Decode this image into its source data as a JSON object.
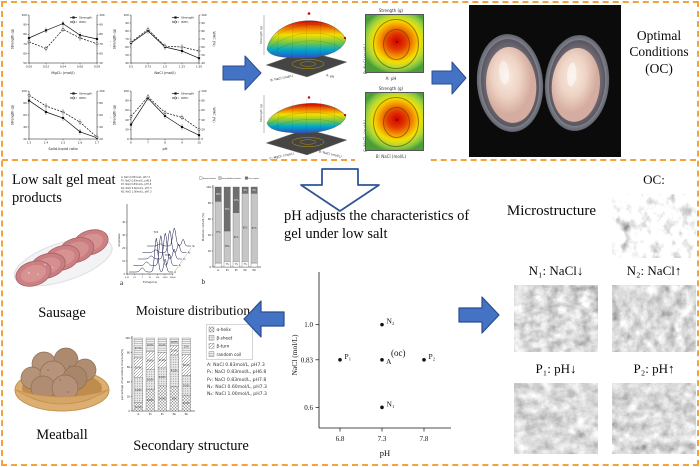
{
  "colors": {
    "border": "#F2A33C",
    "arrow_fill": "#4472C4",
    "arrow_edge": "#2A4D8F",
    "hollow_arrow_edge": "#2F5597"
  },
  "top": {
    "oc_label": "Optimal Conditions (OC)"
  },
  "left": {
    "title": "Low salt gel meat products",
    "sausage_label": "Sausage",
    "meatball_label": "Meatball"
  },
  "center": {
    "moisture_title": "Moisture distribution",
    "secondary_title": "Secondary structure",
    "arrow_text": "pH adjusts the characteristics of gel under low salt"
  },
  "right": {
    "title": "Microstructure",
    "oc_label": "OC:",
    "n1_label": "N₁: NaCl↓",
    "n2_label": "N₂: NaCl↑",
    "p1_label": "P₁: pH↓",
    "p2_label": "P₂: pH↑"
  },
  "chart_data": [
    {
      "id": "mgcl2",
      "type": "line",
      "categories": [
        "0.00",
        "0.02",
        "0.04",
        "0.06",
        "0.08"
      ],
      "xlabel": "MgCl₂ (mol/l)",
      "ylabel": "Strength (g)",
      "y2label": "WHC (%)",
      "ylim": [
        50,
        100
      ],
      "series": [
        {
          "name": "Strength",
          "values": [
            76,
            84,
            91,
            79,
            75
          ]
        },
        {
          "name": "WHC",
          "values": [
            72,
            65,
            85,
            76,
            70
          ]
        }
      ]
    },
    {
      "id": "nacl",
      "type": "line",
      "categories": [
        "0.5",
        "0.75",
        "1.0",
        "1.25",
        "1.50"
      ],
      "xlabel": "NaCl (mol/l)",
      "ylabel": "Strength (g)",
      "y2label": "WHC (%)",
      "ylim": [
        40,
        100
      ],
      "series": [
        {
          "name": "Strength",
          "values": [
            65,
            80,
            60,
            55,
            46
          ]
        },
        {
          "name": "WHC",
          "values": [
            66,
            82,
            61,
            60,
            55
          ]
        }
      ]
    },
    {
      "id": "ratio",
      "type": "line",
      "categories": [
        "1:3",
        "1:4",
        "1:5",
        "1:6",
        "1:7"
      ],
      "xlabel": "Solid-liquid ratio",
      "ylabel": "Strength (g)",
      "y2label": "WHC (%)",
      "ylim": [
        20,
        100
      ],
      "series": [
        {
          "name": "Strength",
          "values": [
            84,
            65,
            55,
            32,
            22
          ]
        },
        {
          "name": "WHC",
          "values": [
            93,
            75,
            65,
            48,
            23
          ]
        }
      ]
    },
    {
      "id": "ph",
      "type": "line",
      "categories": [
        "6",
        "7",
        "8",
        "9",
        "10"
      ],
      "xlabel": "pH",
      "ylabel": "Strength (g)",
      "y2label": "WHC (%)",
      "ylim": [
        0,
        100
      ],
      "series": [
        {
          "name": "Strength",
          "values": [
            30,
            85,
            48,
            25,
            8
          ]
        },
        {
          "name": "WHC",
          "values": [
            47,
            88,
            55,
            45,
            20
          ]
        }
      ]
    },
    {
      "id": "surface1",
      "type": "surface",
      "xlabel": "A: pH",
      "ylabel": "B: NaCl (mol/L)",
      "zlabel": "Strength (g)"
    },
    {
      "id": "contour1",
      "type": "contour",
      "title": "Strength (g)",
      "xlabel": "A: pH",
      "ylabel": "B: NaCl (mol/L)"
    },
    {
      "id": "surface2",
      "type": "surface",
      "xlabel": "B: NaCl (mol/L)",
      "ylabel": "C: MgCl₂ (mol/L)",
      "zlabel": "Strength (g)"
    },
    {
      "id": "contour2",
      "type": "contour",
      "title": "Strength (g)",
      "xlabel": "B: NaCl (mol/L)",
      "ylabel": "C: MgCl₂ (mol/L)"
    },
    {
      "id": "t2",
      "type": "line-waterfall",
      "panel_label": "a",
      "xlabel": "Time(ms)",
      "ylabel": "Amplitude",
      "xticks": [
        "0.01",
        "0.1",
        "1",
        "10",
        "100",
        "1000",
        "10000"
      ],
      "peak_labels": [
        "T21",
        "T22"
      ],
      "samples": [
        "A: NaCl 0.83mol/L, pH7.3",
        "P1: NaCl 0.83mol/L, pH6.8",
        "P2: NaCl 0.83mol/L, pH7.8",
        "N1: NaCl 0.60mol/L, pH7.3",
        "N2: NaCl 1.00mol/L, pH7.3"
      ],
      "trace_heights": [
        34,
        30,
        26,
        22,
        18
      ]
    },
    {
      "id": "moisture",
      "type": "stacked-bar",
      "panel_label": "b",
      "categories": [
        "A",
        "P₁",
        "P₂",
        "N₁",
        "N₂"
      ],
      "ylabel": "Moisture content (%)",
      "ylim": [
        0,
        100
      ],
      "series": [
        {
          "name": "bound water",
          "values": [
            5,
            7,
            7,
            7,
            5
          ]
        },
        {
          "name": "immobilized water",
          "values": [
            77,
            38,
            61,
            85,
            87
          ]
        },
        {
          "name": "free water",
          "values": [
            18,
            55,
            32,
            8,
            8
          ]
        }
      ]
    },
    {
      "id": "secondary",
      "type": "stacked-bar",
      "categories": [
        "A",
        "P₁",
        "P₂",
        "N₁",
        "N₂"
      ],
      "ylabel": "percentage of secondary structure(%)",
      "ylim": [
        0,
        100
      ],
      "series": [
        {
          "name": "α-helix",
          "values": [
            11.5,
            29.8,
            34.4,
            34.0,
            21.8
          ]
        },
        {
          "name": "β-sheet",
          "values": [
            34.8,
            26.8,
            24.6,
            42.8,
            26.8
          ]
        },
        {
          "name": "β-turn",
          "values": [
            26.4,
            24.6,
            21.6,
            12.4,
            28.4
          ]
        },
        {
          "name": "random coil",
          "values": [
            27.3,
            18.8,
            19.4,
            10.8,
            23.0
          ]
        }
      ],
      "samples": [
        "A: NaCl 0.83mol/L, pH7.3",
        "P₁: NaCl 0.83mol/L, pH6.8",
        "P₂: NaCl 0.83mol/L, pH7.8",
        "N₁: NaCl 0.60mol/L, pH7.3",
        "N₂: NaCl 1.00mol/L, pH7.3"
      ]
    },
    {
      "id": "design",
      "type": "scatter",
      "xlabel": "pH",
      "ylabel": "NaCl (mol/L)",
      "xticks": [
        "6.8",
        "7.3",
        "7.8"
      ],
      "yticks": [
        "0.6",
        "0.83",
        "1.0"
      ],
      "points": [
        {
          "label": "N₂",
          "x": 7.3,
          "y": 1.0
        },
        {
          "label": "P₁",
          "x": 6.8,
          "y": 0.83
        },
        {
          "label": "A",
          "note": "(oc)",
          "x": 7.3,
          "y": 0.83
        },
        {
          "label": "P₂",
          "x": 7.8,
          "y": 0.83
        },
        {
          "label": "N₁",
          "x": 7.3,
          "y": 0.6
        }
      ]
    }
  ]
}
